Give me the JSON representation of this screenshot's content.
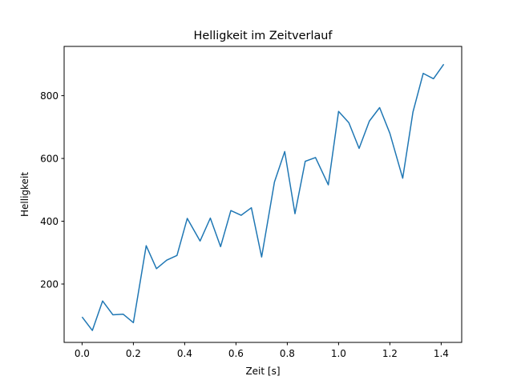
{
  "chart_data": {
    "type": "line",
    "title": "Helligkeit im Zeitverlauf",
    "xlabel": "Zeit [s]",
    "ylabel": "Helligkeit",
    "xlim": [
      -0.07,
      1.48
    ],
    "ylim": [
      14,
      957
    ],
    "xticks": [
      0.0,
      0.2,
      0.4,
      0.6,
      0.8,
      1.0,
      1.2,
      1.4
    ],
    "xtick_labels": [
      "0.0",
      "0.2",
      "0.4",
      "0.6",
      "0.8",
      "1.0",
      "1.2",
      "1.4"
    ],
    "yticks": [
      200,
      400,
      600,
      800
    ],
    "ytick_labels": [
      "200",
      "400",
      "600",
      "800"
    ],
    "grid": false,
    "legend": "none",
    "series": [
      {
        "color": "#1f77b4",
        "x": [
          0.0,
          0.04,
          0.08,
          0.12,
          0.16,
          0.2,
          0.25,
          0.29,
          0.33,
          0.37,
          0.41,
          0.46,
          0.5,
          0.54,
          0.58,
          0.62,
          0.66,
          0.7,
          0.75,
          0.79,
          0.83,
          0.87,
          0.91,
          0.96,
          1.0,
          1.04,
          1.08,
          1.12,
          1.16,
          1.2,
          1.25,
          1.29,
          1.33,
          1.37,
          1.41
        ],
        "y": [
          95,
          52,
          146,
          102,
          104,
          77,
          322,
          249,
          276,
          291,
          409,
          337,
          410,
          319,
          434,
          419,
          443,
          286,
          525,
          622,
          424,
          591,
          603,
          516,
          750,
          714,
          632,
          719,
          762,
          680,
          537,
          748,
          871,
          854,
          900
        ]
      }
    ]
  }
}
